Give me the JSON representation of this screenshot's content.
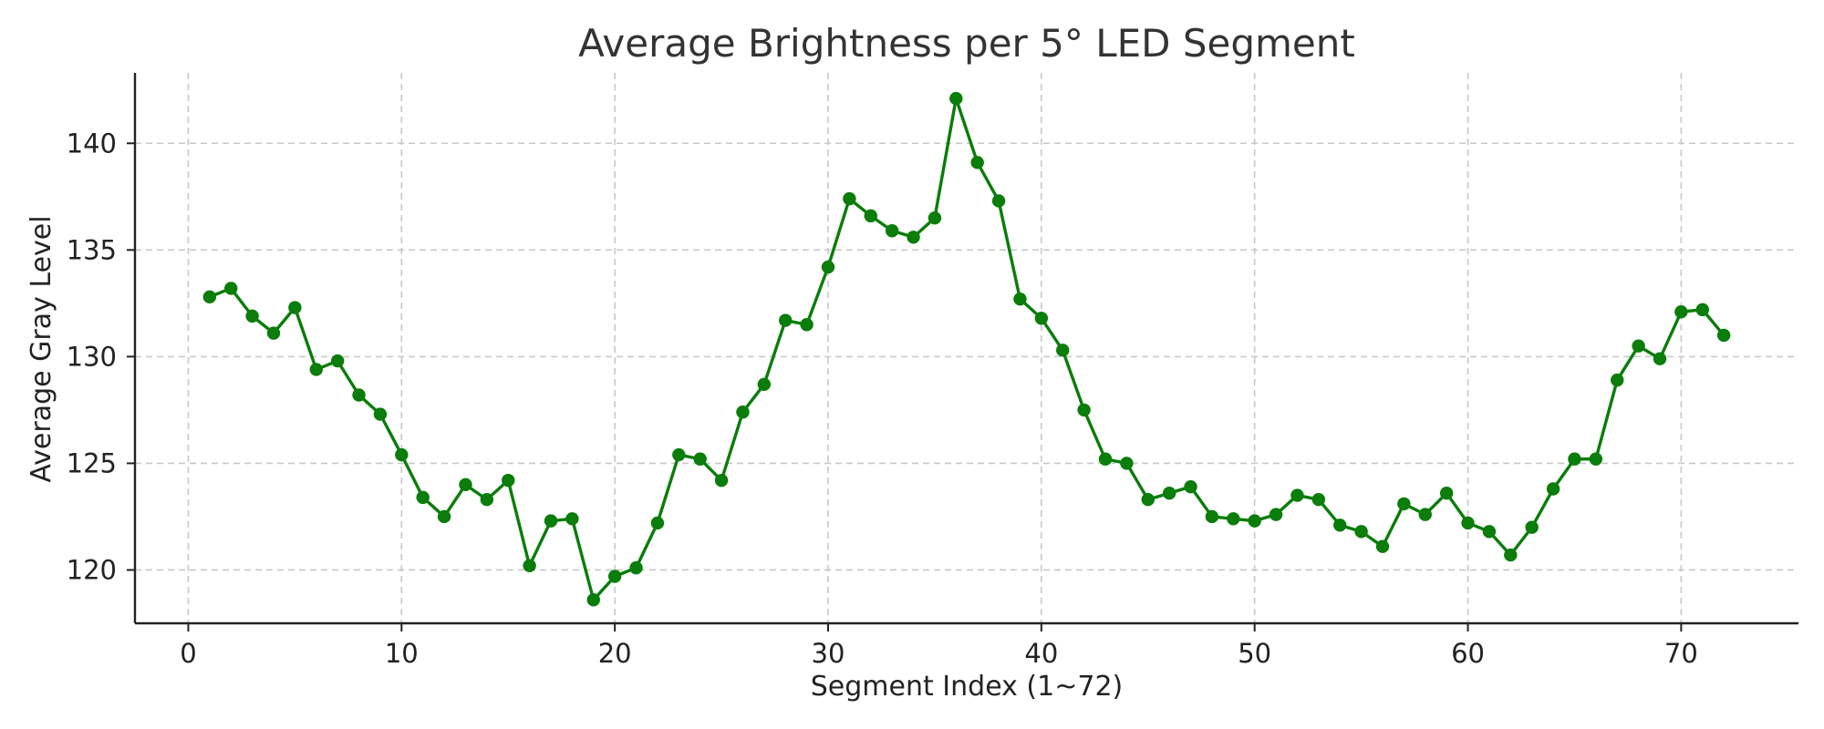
{
  "chart_data": {
    "type": "line",
    "title": "Average Brightness per 5° LED Segment",
    "xlabel": "Segment Index (1~72)",
    "ylabel": "Average Gray Level",
    "xlim": [
      -2.5,
      75.5
    ],
    "ylim": [
      117.5,
      143.3
    ],
    "x_ticks": [
      0,
      10,
      20,
      30,
      40,
      50,
      60,
      70
    ],
    "y_ticks": [
      120,
      125,
      130,
      135,
      140
    ],
    "grid": true,
    "line_color": "#0a7d0a",
    "marker": "circle",
    "series": [
      {
        "x": [
          1,
          2,
          3,
          4,
          5,
          6,
          7,
          8,
          9,
          10,
          11,
          12,
          13,
          14,
          15,
          16,
          17,
          18,
          19,
          20,
          21,
          22,
          23,
          24,
          25,
          26,
          27,
          28,
          29,
          30,
          31,
          32,
          33,
          34,
          35,
          36,
          37,
          38,
          39,
          40,
          41,
          42,
          43,
          44,
          45,
          46,
          47,
          48,
          49,
          50,
          51,
          52,
          53,
          54,
          55,
          56,
          57,
          58,
          59,
          60,
          61,
          62,
          63,
          64,
          65,
          66,
          67,
          68,
          69,
          70,
          71,
          72
        ],
        "values": [
          132.8,
          133.2,
          131.9,
          131.1,
          132.3,
          129.4,
          129.8,
          128.2,
          127.3,
          125.4,
          123.4,
          122.5,
          124.0,
          123.3,
          124.2,
          120.2,
          122.3,
          122.4,
          118.6,
          119.7,
          120.1,
          122.2,
          125.4,
          125.2,
          124.2,
          127.4,
          128.7,
          131.7,
          131.5,
          134.2,
          137.4,
          136.6,
          135.9,
          135.6,
          136.5,
          142.1,
          139.1,
          137.3,
          132.7,
          131.8,
          130.3,
          127.5,
          125.2,
          125.0,
          123.3,
          123.6,
          123.9,
          122.5,
          122.4,
          122.3,
          122.6,
          123.5,
          123.3,
          122.1,
          121.8,
          121.1,
          123.1,
          122.6,
          123.6,
          122.2,
          121.8,
          120.7,
          122.0,
          123.8,
          125.2,
          125.2,
          128.9,
          130.5,
          129.9,
          132.1,
          132.2,
          131.0
        ]
      }
    ]
  }
}
